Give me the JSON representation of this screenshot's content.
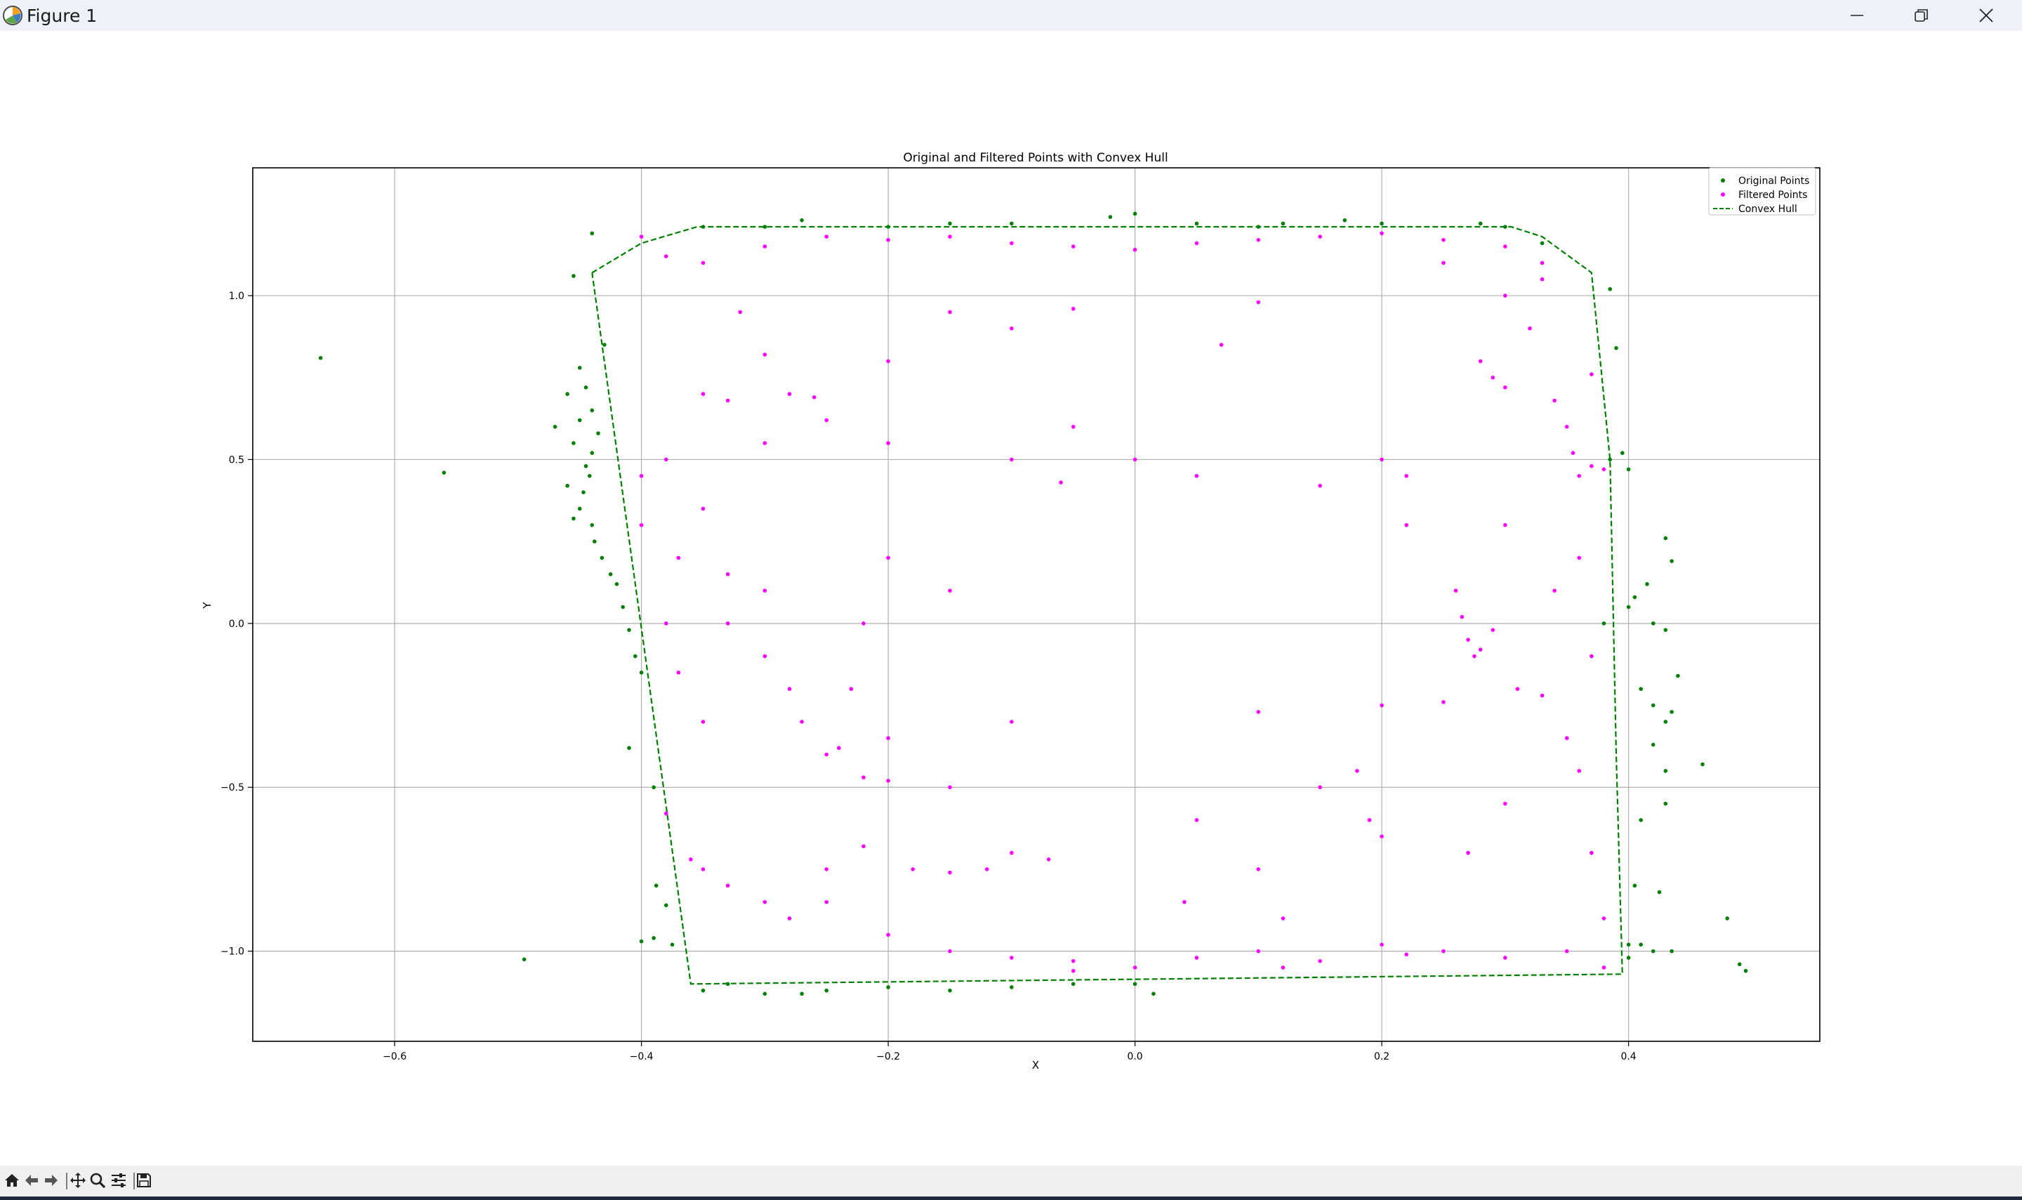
{
  "window": {
    "title": "Figure 1",
    "controls": [
      "minimize",
      "maximize",
      "close"
    ]
  },
  "toolbar": {
    "buttons": [
      "home-icon",
      "back-arrow-icon",
      "forward-arrow-icon",
      "pan-icon",
      "zoom-icon",
      "configure-subplots-icon",
      "save-icon"
    ]
  },
  "chart_data": {
    "type": "scatter",
    "title": "Original and Filtered Points with Convex Hull",
    "xlabel": "X",
    "ylabel": "Y",
    "xlim": [
      -0.715,
      0.555
    ],
    "ylim": [
      -1.275,
      1.39
    ],
    "x_ticks": [
      -0.6,
      -0.4,
      -0.2,
      0.0,
      0.2,
      0.4
    ],
    "x_tick_labels": [
      "−0.6",
      "−0.4",
      "−0.2",
      "0.0",
      "0.2",
      "0.4"
    ],
    "y_ticks": [
      -1.0,
      -0.5,
      0.0,
      0.5,
      1.0
    ],
    "y_tick_labels": [
      "−1.0",
      "−0.5",
      "0.0",
      "0.5",
      "1.0"
    ],
    "grid": true,
    "legend_position": "top-right",
    "colors": {
      "original": "#008000",
      "filtered": "#ff00ff",
      "hull": "#008000"
    },
    "series": [
      {
        "name": "Original Points",
        "marker": "dot",
        "points": [
          [
            -0.66,
            0.81
          ],
          [
            -0.56,
            0.46
          ],
          [
            -0.495,
            -1.025
          ],
          [
            -0.44,
            1.19
          ],
          [
            -0.455,
            1.06
          ],
          [
            -0.45,
            0.78
          ],
          [
            -0.445,
            0.72
          ],
          [
            -0.44,
            0.65
          ],
          [
            -0.435,
            0.58
          ],
          [
            -0.44,
            0.52
          ],
          [
            -0.442,
            0.45
          ],
          [
            -0.447,
            0.4
          ],
          [
            -0.45,
            0.35
          ],
          [
            -0.44,
            0.3
          ],
          [
            -0.438,
            0.25
          ],
          [
            -0.432,
            0.2
          ],
          [
            -0.425,
            0.15
          ],
          [
            -0.42,
            0.12
          ],
          [
            -0.415,
            0.05
          ],
          [
            -0.41,
            -0.02
          ],
          [
            -0.405,
            -0.1
          ],
          [
            -0.4,
            -0.15
          ],
          [
            -0.41,
            -0.38
          ],
          [
            -0.39,
            -0.5
          ],
          [
            -0.388,
            -0.8
          ],
          [
            -0.38,
            -0.86
          ],
          [
            -0.39,
            -0.96
          ],
          [
            -0.375,
            -0.98
          ],
          [
            -0.4,
            -0.97
          ],
          [
            -0.43,
            0.85
          ],
          [
            -0.46,
            0.7
          ],
          [
            -0.47,
            0.6
          ],
          [
            -0.455,
            0.55
          ],
          [
            -0.46,
            0.42
          ],
          [
            -0.45,
            0.62
          ],
          [
            -0.445,
            0.48
          ],
          [
            -0.455,
            0.32
          ],
          [
            -0.35,
            -1.12
          ],
          [
            -0.3,
            -1.13
          ],
          [
            -0.25,
            -1.12
          ],
          [
            -0.2,
            -1.11
          ],
          [
            -0.15,
            -1.12
          ],
          [
            -0.1,
            -1.11
          ],
          [
            -0.05,
            -1.1
          ],
          [
            0.0,
            -1.1
          ],
          [
            0.015,
            -1.13
          ],
          [
            -0.33,
            -1.1
          ],
          [
            -0.27,
            -1.13
          ],
          [
            -0.35,
            1.21
          ],
          [
            -0.27,
            1.23
          ],
          [
            -0.2,
            1.21
          ],
          [
            -0.1,
            1.22
          ],
          [
            -0.02,
            1.24
          ],
          [
            0.05,
            1.22
          ],
          [
            0.12,
            1.22
          ],
          [
            0.2,
            1.22
          ],
          [
            0.28,
            1.22
          ],
          [
            0.33,
            1.16
          ],
          [
            -0.3,
            1.21
          ],
          [
            -0.15,
            1.22
          ],
          [
            0.0,
            1.25
          ],
          [
            0.1,
            1.21
          ],
          [
            0.17,
            1.23
          ],
          [
            0.3,
            1.21
          ],
          [
            0.385,
            1.02
          ],
          [
            0.39,
            0.84
          ],
          [
            0.385,
            0.5
          ],
          [
            0.4,
            0.47
          ],
          [
            0.395,
            0.52
          ],
          [
            0.4,
            0.05
          ],
          [
            0.405,
            0.08
          ],
          [
            0.415,
            0.12
          ],
          [
            0.42,
            0.0
          ],
          [
            0.43,
            -0.02
          ],
          [
            0.41,
            -0.2
          ],
          [
            0.42,
            -0.25
          ],
          [
            0.43,
            -0.3
          ],
          [
            0.44,
            -0.16
          ],
          [
            0.435,
            -0.27
          ],
          [
            0.42,
            -0.37
          ],
          [
            0.43,
            -0.45
          ],
          [
            0.41,
            -0.6
          ],
          [
            0.43,
            -0.55
          ],
          [
            0.405,
            -0.8
          ],
          [
            0.425,
            -0.82
          ],
          [
            0.4,
            -0.98
          ],
          [
            0.42,
            -1.0
          ],
          [
            0.435,
            -1.0
          ],
          [
            0.41,
            -0.98
          ],
          [
            0.43,
            0.26
          ],
          [
            0.435,
            0.19
          ],
          [
            0.38,
            0.0
          ],
          [
            0.46,
            -0.43
          ],
          [
            0.48,
            -0.9
          ],
          [
            0.49,
            -1.04
          ],
          [
            0.495,
            -1.06
          ],
          [
            0.4,
            -1.02
          ]
        ]
      },
      {
        "name": "Filtered Points",
        "marker": "dot",
        "points": [
          [
            -0.4,
            1.18
          ],
          [
            -0.38,
            1.12
          ],
          [
            -0.35,
            1.1
          ],
          [
            -0.3,
            1.15
          ],
          [
            -0.25,
            1.18
          ],
          [
            -0.2,
            1.17
          ],
          [
            -0.15,
            1.18
          ],
          [
            -0.1,
            1.16
          ],
          [
            -0.05,
            1.15
          ],
          [
            0.0,
            1.14
          ],
          [
            0.05,
            1.16
          ],
          [
            0.1,
            1.17
          ],
          [
            0.15,
            1.18
          ],
          [
            0.2,
            1.19
          ],
          [
            0.25,
            1.17
          ],
          [
            0.3,
            1.15
          ],
          [
            0.33,
            1.1
          ],
          [
            -0.32,
            0.95
          ],
          [
            -0.3,
            0.82
          ],
          [
            -0.35,
            0.7
          ],
          [
            -0.33,
            0.68
          ],
          [
            -0.28,
            0.7
          ],
          [
            -0.26,
            0.69
          ],
          [
            -0.3,
            0.55
          ],
          [
            -0.4,
            0.45
          ],
          [
            -0.38,
            0.5
          ],
          [
            -0.4,
            0.3
          ],
          [
            -0.37,
            0.2
          ],
          [
            -0.33,
            0.15
          ],
          [
            -0.3,
            0.1
          ],
          [
            -0.38,
            0.0
          ],
          [
            -0.37,
            -0.15
          ],
          [
            -0.35,
            -0.3
          ],
          [
            -0.28,
            -0.2
          ],
          [
            -0.27,
            -0.3
          ],
          [
            -0.25,
            -0.4
          ],
          [
            -0.22,
            -0.47
          ],
          [
            -0.2,
            -0.48
          ],
          [
            -0.24,
            -0.38
          ],
          [
            -0.23,
            -0.2
          ],
          [
            -0.38,
            -0.58
          ],
          [
            -0.36,
            -0.72
          ],
          [
            -0.35,
            -0.75
          ],
          [
            -0.33,
            -0.8
          ],
          [
            -0.3,
            -0.85
          ],
          [
            -0.28,
            -0.9
          ],
          [
            -0.25,
            -0.75
          ],
          [
            -0.22,
            -0.68
          ],
          [
            -0.18,
            -0.75
          ],
          [
            -0.15,
            -0.76
          ],
          [
            -0.12,
            -0.75
          ],
          [
            -0.1,
            -0.7
          ],
          [
            -0.25,
            -0.85
          ],
          [
            -0.2,
            -0.95
          ],
          [
            -0.15,
            -1.0
          ],
          [
            -0.1,
            -1.02
          ],
          [
            -0.05,
            -1.03
          ],
          [
            0.0,
            -1.05
          ],
          [
            0.05,
            -1.02
          ],
          [
            0.1,
            -1.0
          ],
          [
            0.15,
            -1.03
          ],
          [
            0.2,
            -0.98
          ],
          [
            0.25,
            -1.0
          ],
          [
            0.3,
            -1.02
          ],
          [
            0.35,
            -1.0
          ],
          [
            0.38,
            -1.05
          ],
          [
            0.12,
            -1.05
          ],
          [
            0.22,
            -1.01
          ],
          [
            -0.05,
            -1.06
          ],
          [
            0.26,
            0.1
          ],
          [
            0.265,
            0.02
          ],
          [
            0.27,
            -0.05
          ],
          [
            0.275,
            -0.1
          ],
          [
            0.28,
            -0.08
          ],
          [
            0.31,
            -0.2
          ],
          [
            0.33,
            -0.22
          ],
          [
            0.2,
            -0.25
          ],
          [
            0.25,
            -0.24
          ],
          [
            0.18,
            -0.45
          ],
          [
            0.19,
            -0.6
          ],
          [
            0.2,
            -0.65
          ],
          [
            0.15,
            -0.5
          ],
          [
            0.28,
            0.8
          ],
          [
            0.29,
            0.75
          ],
          [
            0.3,
            0.72
          ],
          [
            0.34,
            0.68
          ],
          [
            0.35,
            0.6
          ],
          [
            0.355,
            0.52
          ],
          [
            0.37,
            0.48
          ],
          [
            0.36,
            0.45
          ],
          [
            0.38,
            0.47
          ],
          [
            0.37,
            0.76
          ],
          [
            0.32,
            0.9
          ],
          [
            0.3,
            1.0
          ],
          [
            0.33,
            1.05
          ],
          [
            0.25,
            1.1
          ],
          [
            0.2,
            0.5
          ],
          [
            0.22,
            0.45
          ],
          [
            0.15,
            0.42
          ],
          [
            -0.05,
            0.96
          ],
          [
            0.1,
            0.98
          ],
          [
            0.07,
            0.85
          ],
          [
            -0.1,
            0.9
          ],
          [
            -0.15,
            0.95
          ],
          [
            -0.05,
            0.6
          ],
          [
            0.05,
            0.45
          ],
          [
            0.0,
            0.5
          ],
          [
            -0.1,
            0.5
          ],
          [
            -0.06,
            0.43
          ],
          [
            0.1,
            -0.27
          ],
          [
            -0.1,
            -0.3
          ],
          [
            -0.15,
            -0.5
          ],
          [
            0.05,
            -0.6
          ],
          [
            0.1,
            -0.75
          ],
          [
            0.04,
            -0.85
          ],
          [
            -0.07,
            -0.72
          ],
          [
            0.12,
            -0.9
          ],
          [
            0.3,
            -0.55
          ],
          [
            0.27,
            -0.7
          ],
          [
            0.35,
            -0.35
          ],
          [
            0.34,
            0.1
          ],
          [
            0.29,
            -0.02
          ],
          [
            0.22,
            0.3
          ],
          [
            0.3,
            0.3
          ],
          [
            -0.2,
            0.2
          ],
          [
            -0.15,
            0.1
          ],
          [
            -0.2,
            0.55
          ],
          [
            -0.2,
            0.8
          ],
          [
            -0.25,
            0.62
          ],
          [
            -0.35,
            0.35
          ],
          [
            -0.33,
            0.0
          ],
          [
            -0.3,
            -0.1
          ],
          [
            -0.22,
            0.0
          ],
          [
            -0.2,
            -0.35
          ],
          [
            0.36,
            0.2
          ],
          [
            0.37,
            -0.1
          ],
          [
            0.36,
            -0.45
          ],
          [
            0.37,
            -0.7
          ],
          [
            0.38,
            -0.9
          ]
        ]
      },
      {
        "name": "Convex Hull",
        "line_style": "dashed",
        "points": [
          [
            -0.44,
            1.07
          ],
          [
            -0.4,
            1.16
          ],
          [
            -0.355,
            1.21
          ],
          [
            0.305,
            1.21
          ],
          [
            0.33,
            1.18
          ],
          [
            0.37,
            1.07
          ],
          [
            0.385,
            0.5
          ],
          [
            0.39,
            -0.4
          ],
          [
            0.395,
            -1.07
          ],
          [
            -0.36,
            -1.1
          ],
          [
            -0.44,
            1.07
          ]
        ]
      }
    ]
  }
}
